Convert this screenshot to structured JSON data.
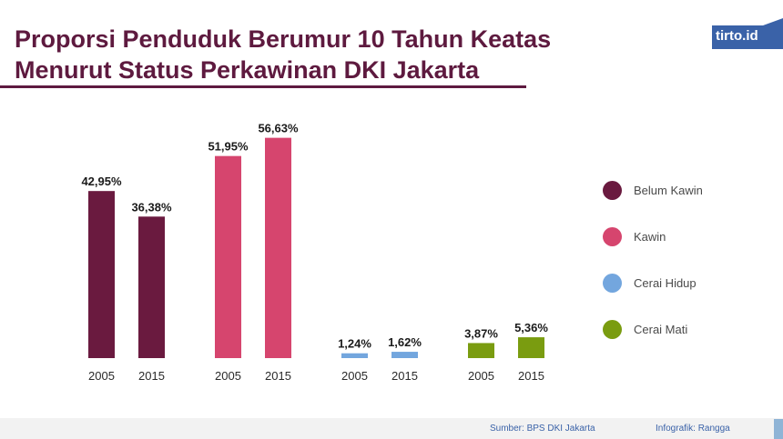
{
  "title_line1": "Proporsi Penduduk Berumur 10 Tahun Keatas",
  "title_line2": "Menurut Status Perkawinan DKI Jakarta",
  "logo": {
    "text": "tirto.id",
    "color": "#3a62a8"
  },
  "source": "Sumber: BPS DKI Jakarta",
  "credit": "Infografik: Rangga",
  "colors": {
    "title": "#5e1a3f",
    "belum_kawin": "#6a1a3f",
    "kawin": "#d6456e",
    "cerai_hidup": "#73a6de",
    "cerai_mati": "#7a9c10"
  },
  "chart_data": {
    "type": "bar",
    "title": "Proporsi Penduduk Berumur 10 Tahun Keatas Menurut Status Perkawinan DKI Jakarta",
    "xlabel": "",
    "ylabel": "",
    "grid": false,
    "legend_position": "right",
    "series": [
      {
        "name": "Belum Kawin",
        "color": "#6a1a3f",
        "categories": [
          "2005",
          "2015"
        ],
        "values": [
          42.95,
          36.38
        ],
        "labels": [
          "42,95%",
          "36,38%"
        ]
      },
      {
        "name": "Kawin",
        "color": "#d6456e",
        "categories": [
          "2005",
          "2015"
        ],
        "values": [
          51.95,
          56.63
        ],
        "labels": [
          "51,95%",
          "56,63%"
        ]
      },
      {
        "name": "Cerai Hidup",
        "color": "#73a6de",
        "categories": [
          "2005",
          "2015"
        ],
        "values": [
          1.24,
          1.62
        ],
        "labels": [
          "1,24%",
          "1,62%"
        ]
      },
      {
        "name": "Cerai Mati",
        "color": "#7a9c10",
        "categories": [
          "2005",
          "2015"
        ],
        "values": [
          3.87,
          5.36
        ],
        "labels": [
          "3,87%",
          "5,36%"
        ]
      }
    ],
    "ylim": [
      0,
      100
    ]
  }
}
